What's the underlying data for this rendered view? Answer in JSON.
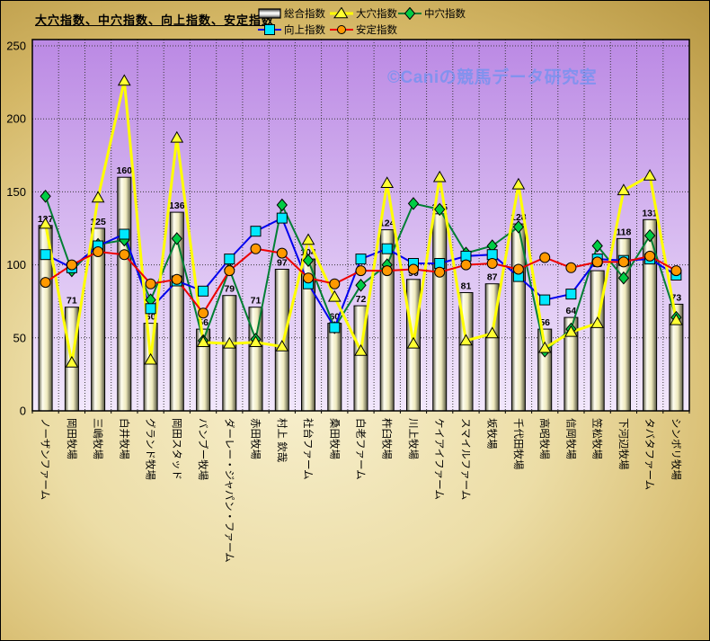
{
  "title": "大穴指数、中穴指数、向上指数、安定指数",
  "watermark": "©Caniの競馬データ研究室",
  "colors": {
    "frame_gold": "#d4b766",
    "plot_top": "#bb89e4",
    "plot_bottom": "#f2e8fc",
    "bar_face": "#f8f4d8",
    "grid": "#3a3a3a",
    "watermark_blue": "#6e91f0"
  },
  "y_axis": {
    "ticks": [
      0,
      50,
      100,
      150,
      200,
      250
    ]
  },
  "chart_data": {
    "type": "bar+line combo",
    "title": "大穴指数、中穴指数、向上指数、安定指数",
    "ylim": [
      0,
      250
    ],
    "grid": "dotted",
    "legend_position": "top",
    "bar_labels_shown": true,
    "categories": [
      "ノーザンファーム",
      "岡田牧場",
      "三嶋牧場",
      "白井牧場",
      "グランド牧場",
      "岡田スタッド",
      "バンブー牧場",
      "ダーレー・ジャパン・ファーム",
      "赤田牧場",
      "村上 欽哉",
      "社台ファーム",
      "桑田牧場",
      "白老ファーム",
      "杵臼牧場",
      "川上牧場",
      "ケイアイファーム",
      "スマイルファーム",
      "坂牧場",
      "千代田牧場",
      "高昭牧場",
      "信岡牧場",
      "笠松牧場",
      "下河辺牧場",
      "タバタファーム",
      "シンボリ牧場"
    ],
    "series": [
      {
        "name": "総合指数",
        "type": "bar",
        "marker": "bar",
        "line_color": "#000000",
        "marker_color": "#f8f4d8",
        "values": [
          127,
          71,
          125,
          160,
          60,
          136,
          56,
          79,
          71,
          97,
          104,
          60,
          72,
          124,
          90,
          135,
          81,
          87,
          128,
          56,
          64,
          96,
          118,
          131,
          73
        ]
      },
      {
        "name": "大穴指数",
        "type": "line",
        "marker": "triangle",
        "line_color": "#ffff00",
        "marker_color": "#ffff33",
        "values": [
          128,
          33,
          146,
          226,
          35,
          187,
          47,
          46,
          47,
          44,
          117,
          78,
          41,
          156,
          46,
          160,
          48,
          53,
          155,
          43,
          54,
          60,
          151,
          161,
          62
        ]
      },
      {
        "name": "中穴指数",
        "type": "line",
        "marker": "diamond",
        "line_color": "#007f33",
        "marker_color": "#00cc44",
        "values": [
          147,
          96,
          114,
          117,
          76,
          118,
          48,
          97,
          49,
          141,
          103,
          57,
          86,
          100,
          142,
          138,
          108,
          113,
          126,
          41,
          56,
          113,
          91,
          120,
          64
        ]
      },
      {
        "name": "向上指数",
        "type": "line",
        "marker": "square",
        "line_color": "#0000ee",
        "marker_color": "#00e8ff",
        "values": [
          107,
          98,
          113,
          121,
          70,
          89,
          82,
          104,
          123,
          132,
          87,
          57,
          104,
          111,
          101,
          101,
          106,
          107,
          92,
          76,
          80,
          104,
          103,
          104,
          93
        ]
      },
      {
        "name": "安定指数",
        "type": "line",
        "marker": "circle",
        "line_color": "#ee0000",
        "marker_color": "#ff9900",
        "values": [
          88,
          100,
          109,
          107,
          87,
          90,
          67,
          96,
          111,
          108,
          91,
          87,
          96,
          96,
          97,
          95,
          100,
          101,
          97,
          105,
          98,
          102,
          102,
          106,
          96
        ]
      }
    ]
  }
}
